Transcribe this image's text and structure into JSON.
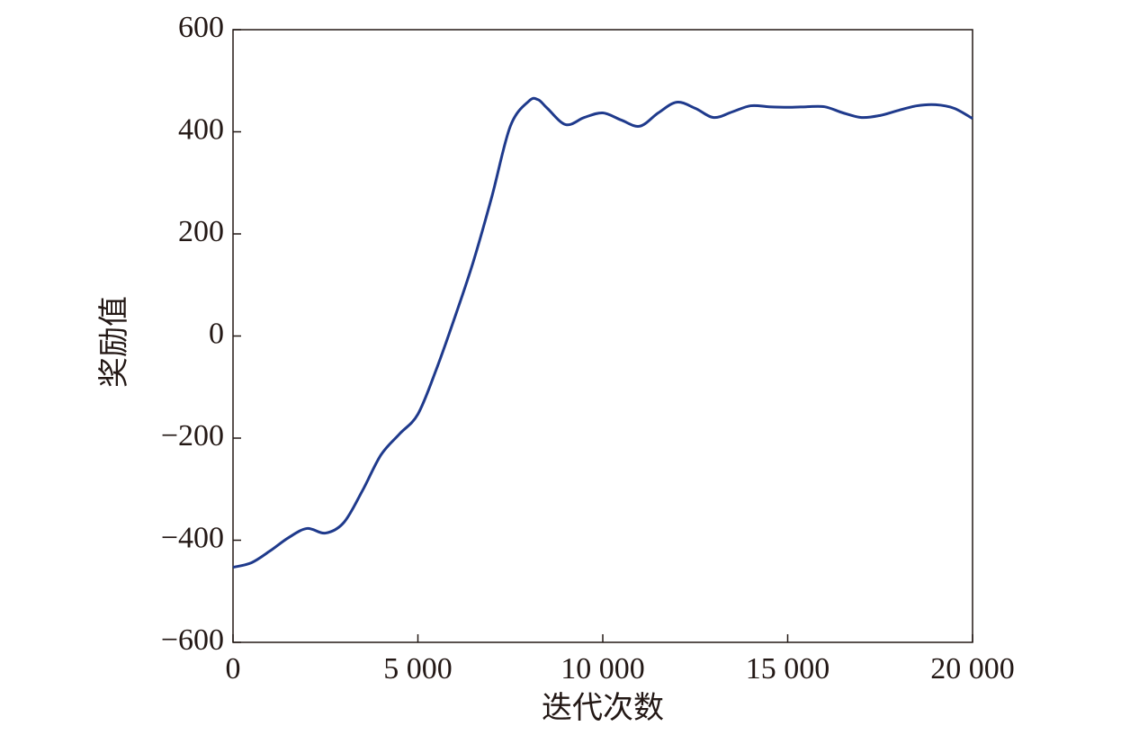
{
  "chart_data": {
    "type": "line",
    "xlabel": "迭代次数",
    "ylabel": "奖励值",
    "color": "#1f3a8c",
    "x": [
      0,
      500,
      1000,
      1500,
      2000,
      2500,
      3000,
      3500,
      4000,
      4500,
      5000,
      5500,
      6000,
      6500,
      7000,
      7500,
      8000,
      8250,
      8500,
      9000,
      9500,
      10000,
      10500,
      11000,
      11500,
      12000,
      12500,
      13000,
      13500,
      14000,
      14500,
      15000,
      15500,
      16000,
      16500,
      17000,
      17500,
      18000,
      18500,
      19000,
      19500,
      20000
    ],
    "values": [
      -453,
      -444,
      -421,
      -395,
      -377,
      -386,
      -365,
      -303,
      -233,
      -192,
      -153,
      -65,
      37,
      146,
      273,
      411,
      460,
      463,
      446,
      414,
      428,
      437,
      423,
      411,
      437,
      458,
      446,
      428,
      439,
      451,
      449,
      448,
      449,
      449,
      437,
      428,
      432,
      442,
      451,
      453,
      446,
      426
    ],
    "xlim": [
      0,
      20000
    ],
    "xticks": [
      0,
      {
        "value": 5000,
        "label": "5 000"
      },
      {
        "value": 10000,
        "label": "10 000"
      },
      {
        "value": 15000,
        "label": "15 000"
      },
      {
        "value": 20000,
        "label": "20 000"
      }
    ],
    "ylim": [
      -600,
      600
    ],
    "yticks": [
      {
        "value": -600,
        "label": "−600"
      },
      {
        "value": -400,
        "label": "−400"
      },
      {
        "value": -200,
        "label": "−200"
      },
      0,
      200,
      400,
      600
    ]
  }
}
